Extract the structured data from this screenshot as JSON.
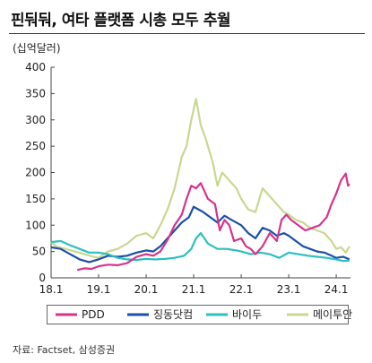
{
  "title": "핀둬둬, 여타 플랫폼 시총 모두 추월",
  "unit_label": "(십억달러)",
  "source": "자료: Factset, 삼성증권",
  "chart_data": {
    "type": "line",
    "ylim": [
      0,
      400
    ],
    "yticks": [
      0,
      50,
      100,
      150,
      200,
      250,
      300,
      350,
      400
    ],
    "xlim": [
      2018.0,
      2024.3
    ],
    "xticks": [
      {
        "label": "18.1",
        "t": 2018.0
      },
      {
        "label": "19.1",
        "t": 2019.0
      },
      {
        "label": "20.1",
        "t": 2020.0
      },
      {
        "label": "21.1",
        "t": 2021.0
      },
      {
        "label": "22.1",
        "t": 2022.0
      },
      {
        "label": "23.1",
        "t": 2023.0
      },
      {
        "label": "24.1",
        "t": 2024.0
      }
    ],
    "grid": false,
    "legend_position": "bottom",
    "series": [
      {
        "name": "PDD",
        "color": "#d6338c",
        "points": [
          [
            2018.55,
            15
          ],
          [
            2018.7,
            18
          ],
          [
            2018.85,
            17
          ],
          [
            2019.0,
            22
          ],
          [
            2019.2,
            25
          ],
          [
            2019.4,
            24
          ],
          [
            2019.6,
            28
          ],
          [
            2019.8,
            40
          ],
          [
            2020.0,
            45
          ],
          [
            2020.15,
            42
          ],
          [
            2020.3,
            50
          ],
          [
            2020.45,
            72
          ],
          [
            2020.6,
            100
          ],
          [
            2020.75,
            120
          ],
          [
            2020.85,
            150
          ],
          [
            2020.95,
            175
          ],
          [
            2021.05,
            170
          ],
          [
            2021.15,
            180
          ],
          [
            2021.3,
            150
          ],
          [
            2021.45,
            140
          ],
          [
            2021.55,
            90
          ],
          [
            2021.65,
            110
          ],
          [
            2021.75,
            100
          ],
          [
            2021.85,
            70
          ],
          [
            2022.0,
            75
          ],
          [
            2022.1,
            60
          ],
          [
            2022.2,
            55
          ],
          [
            2022.3,
            45
          ],
          [
            2022.45,
            60
          ],
          [
            2022.6,
            85
          ],
          [
            2022.75,
            70
          ],
          [
            2022.85,
            110
          ],
          [
            2022.95,
            120
          ],
          [
            2023.05,
            110
          ],
          [
            2023.2,
            100
          ],
          [
            2023.35,
            90
          ],
          [
            2023.5,
            95
          ],
          [
            2023.65,
            100
          ],
          [
            2023.8,
            115
          ],
          [
            2023.9,
            140
          ],
          [
            2024.0,
            160
          ],
          [
            2024.1,
            185
          ],
          [
            2024.2,
            198
          ],
          [
            2024.25,
            175
          ],
          [
            2024.28,
            178
          ]
        ]
      },
      {
        "name": "징동닷컴",
        "color": "#1b4fa8",
        "points": [
          [
            2018.0,
            58
          ],
          [
            2018.2,
            55
          ],
          [
            2018.4,
            45
          ],
          [
            2018.6,
            35
          ],
          [
            2018.8,
            30
          ],
          [
            2019.0,
            35
          ],
          [
            2019.2,
            42
          ],
          [
            2019.4,
            40
          ],
          [
            2019.6,
            42
          ],
          [
            2019.8,
            48
          ],
          [
            2020.0,
            52
          ],
          [
            2020.15,
            50
          ],
          [
            2020.3,
            60
          ],
          [
            2020.45,
            75
          ],
          [
            2020.6,
            90
          ],
          [
            2020.75,
            105
          ],
          [
            2020.9,
            115
          ],
          [
            2021.0,
            135
          ],
          [
            2021.1,
            130
          ],
          [
            2021.2,
            125
          ],
          [
            2021.35,
            115
          ],
          [
            2021.5,
            105
          ],
          [
            2021.65,
            118
          ],
          [
            2021.8,
            110
          ],
          [
            2022.0,
            100
          ],
          [
            2022.15,
            85
          ],
          [
            2022.3,
            75
          ],
          [
            2022.45,
            95
          ],
          [
            2022.6,
            90
          ],
          [
            2022.75,
            80
          ],
          [
            2022.9,
            85
          ],
          [
            2023.0,
            80
          ],
          [
            2023.15,
            70
          ],
          [
            2023.3,
            60
          ],
          [
            2023.45,
            55
          ],
          [
            2023.6,
            50
          ],
          [
            2023.75,
            48
          ],
          [
            2023.9,
            42
          ],
          [
            2024.0,
            38
          ],
          [
            2024.15,
            40
          ],
          [
            2024.28,
            35
          ]
        ]
      },
      {
        "name": "바이두",
        "color": "#2bbfbf",
        "points": [
          [
            2018.0,
            68
          ],
          [
            2018.2,
            70
          ],
          [
            2018.4,
            62
          ],
          [
            2018.6,
            55
          ],
          [
            2018.8,
            48
          ],
          [
            2019.0,
            48
          ],
          [
            2019.2,
            45
          ],
          [
            2019.4,
            38
          ],
          [
            2019.6,
            35
          ],
          [
            2019.8,
            34
          ],
          [
            2020.0,
            36
          ],
          [
            2020.2,
            35
          ],
          [
            2020.4,
            36
          ],
          [
            2020.6,
            38
          ],
          [
            2020.8,
            42
          ],
          [
            2020.95,
            55
          ],
          [
            2021.05,
            75
          ],
          [
            2021.15,
            85
          ],
          [
            2021.3,
            65
          ],
          [
            2021.5,
            55
          ],
          [
            2021.7,
            55
          ],
          [
            2021.9,
            52
          ],
          [
            2022.0,
            50
          ],
          [
            2022.2,
            45
          ],
          [
            2022.4,
            48
          ],
          [
            2022.6,
            45
          ],
          [
            2022.8,
            38
          ],
          [
            2023.0,
            48
          ],
          [
            2023.2,
            45
          ],
          [
            2023.4,
            42
          ],
          [
            2023.6,
            40
          ],
          [
            2023.8,
            38
          ],
          [
            2024.0,
            35
          ],
          [
            2024.15,
            32
          ],
          [
            2024.28,
            33
          ]
        ]
      },
      {
        "name": "메이투안",
        "color": "#c8d88f",
        "points": [
          [
            2018.0,
            68
          ],
          [
            2018.1,
            60
          ],
          [
            2018.3,
            55
          ],
          [
            2018.5,
            50
          ],
          [
            2018.7,
            45
          ],
          [
            2018.9,
            40
          ],
          [
            2019.0,
            38
          ],
          [
            2019.2,
            50
          ],
          [
            2019.4,
            55
          ],
          [
            2019.6,
            65
          ],
          [
            2019.8,
            80
          ],
          [
            2020.0,
            85
          ],
          [
            2020.15,
            75
          ],
          [
            2020.3,
            100
          ],
          [
            2020.45,
            130
          ],
          [
            2020.6,
            170
          ],
          [
            2020.75,
            230
          ],
          [
            2020.85,
            250
          ],
          [
            2020.95,
            300
          ],
          [
            2021.05,
            340
          ],
          [
            2021.15,
            290
          ],
          [
            2021.25,
            265
          ],
          [
            2021.4,
            220
          ],
          [
            2021.5,
            175
          ],
          [
            2021.6,
            200
          ],
          [
            2021.75,
            185
          ],
          [
            2021.9,
            170
          ],
          [
            2022.0,
            150
          ],
          [
            2022.15,
            130
          ],
          [
            2022.3,
            125
          ],
          [
            2022.45,
            170
          ],
          [
            2022.6,
            155
          ],
          [
            2022.75,
            140
          ],
          [
            2022.9,
            125
          ],
          [
            2023.0,
            120
          ],
          [
            2023.15,
            110
          ],
          [
            2023.3,
            105
          ],
          [
            2023.45,
            95
          ],
          [
            2023.6,
            90
          ],
          [
            2023.75,
            85
          ],
          [
            2023.9,
            70
          ],
          [
            2024.0,
            55
          ],
          [
            2024.1,
            58
          ],
          [
            2024.2,
            48
          ],
          [
            2024.28,
            60
          ]
        ]
      }
    ]
  }
}
